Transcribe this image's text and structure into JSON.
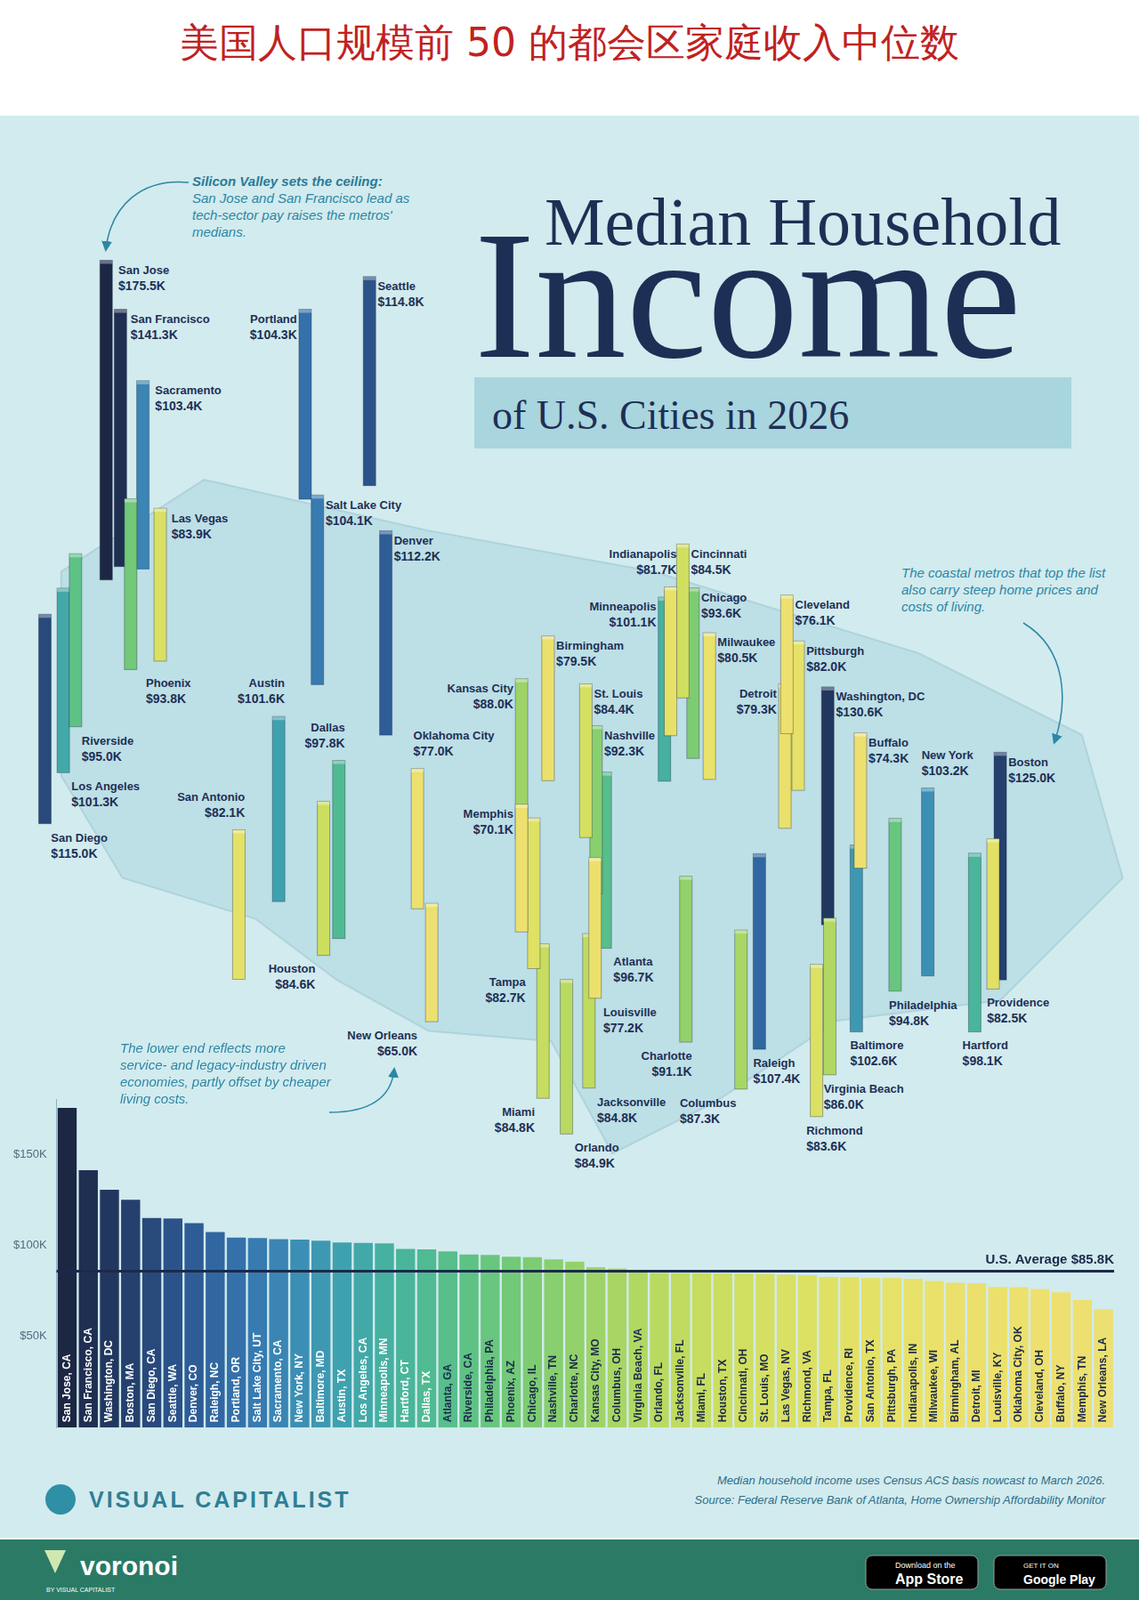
{
  "header": "美国人口规模前 50 的都会区家庭收入中位数",
  "chart_data": {
    "type": "bar",
    "title": "Median Household Income",
    "subtitle": "of U.S. Cities in 2026",
    "categories": [
      "San Jose, CA",
      "San Francisco, CA",
      "Washington, DC",
      "Boston, MA",
      "San Diego, CA",
      "Seattle, WA",
      "Denver, CO",
      "Raleigh, NC",
      "Portland, OR",
      "Salt Lake City, UT",
      "Sacramento, CA",
      "New York, NY",
      "Baltimore, MD",
      "Austin, TX",
      "Los Angeles, CA",
      "Minneapolis, MN",
      "Hartford, CT",
      "Dallas, TX",
      "Atlanta, GA",
      "Riverside, CA",
      "Philadelphia, PA",
      "Phoenix, AZ",
      "Chicago, IL",
      "Nashville, TN",
      "Charlotte, NC",
      "Kansas City, MO",
      "Columbus, OH",
      "Virginia Beach, VA",
      "Orlando, FL",
      "Jacksonville, FL",
      "Miami, FL",
      "Houston, TX",
      "Cincinnati, OH",
      "St. Louis, MO",
      "Las Vegas, NV",
      "Richmond, VA",
      "Tampa, FL",
      "Providence, RI",
      "San Antonio, TX",
      "Pittsburgh, PA",
      "Indianapolis, IN",
      "Milwaukee, WI",
      "Birmingham, AL",
      "Detroit, MI",
      "Louisville, KY",
      "Oklahoma City, OK",
      "Cleveland, OH",
      "Buffalo, NY",
      "Memphis, TN",
      "New Orleans, LA"
    ],
    "values": [
      175500,
      141300,
      130600,
      125000,
      115000,
      114800,
      112200,
      107400,
      104300,
      104100,
      103400,
      103200,
      102600,
      101600,
      101300,
      101100,
      98100,
      97800,
      96700,
      95000,
      94800,
      93800,
      93600,
      92300,
      91100,
      88000,
      87300,
      86000,
      84900,
      84800,
      84800,
      84600,
      84500,
      84400,
      83900,
      83600,
      82700,
      82500,
      82100,
      82000,
      81700,
      80500,
      79500,
      79300,
      77200,
      77000,
      76100,
      74300,
      70100,
      65000
    ],
    "value_labels": [
      "$175.5K",
      "$141.3K",
      "$130.6K",
      "$125.0K",
      "$115.0K",
      "$114.8K",
      "$112.2K",
      "$107.4K",
      "$104.3K",
      "$104.1K",
      "$103.4K",
      "$103.2K",
      "$102.6K",
      "$101.6K",
      "$101.3K",
      "$101.1K",
      "$98.1K",
      "$97.8K",
      "$96.7K",
      "$95.0K",
      "$94.8K",
      "$93.8K",
      "$93.6K",
      "$92.3K",
      "$91.1K",
      "$88.0K",
      "$87.3K",
      "$86.0K",
      "$84.9K",
      "$84.8K",
      "$84.8K",
      "$84.6K",
      "$84.5K",
      "$84.4K",
      "$83.9K",
      "$83.6K",
      "$82.7K",
      "$82.5K",
      "$82.1K",
      "$82.0K",
      "$81.7K",
      "$80.5K",
      "$79.5K",
      "$79.3K",
      "$77.2K",
      "$77.0K",
      "$76.1K",
      "$74.3K",
      "$70.1K",
      "$65.0K"
    ],
    "map_labels": [
      "San Jose",
      "San Francisco",
      "Washington, DC",
      "Boston",
      "San Diego",
      "Seattle",
      "Denver",
      "Raleigh",
      "Portland",
      "Salt Lake City",
      "Sacramento",
      "New York",
      "Baltimore",
      "Austin",
      "Los Angeles",
      "Minneapolis",
      "Hartford",
      "Dallas",
      "Atlanta",
      "Riverside",
      "Philadelphia",
      "Phoenix",
      "Chicago",
      "Nashville",
      "Charlotte",
      "Kansas City",
      "Columbus",
      "Virginia Beach",
      "Orlando",
      "Jacksonville",
      "Miami",
      "Houston",
      "Cincinnati",
      "St. Louis",
      "Las Vegas",
      "Richmond",
      "Tampa",
      "Providence",
      "San Antonio",
      "Pittsburgh",
      "Indianapolis",
      "Milwaukee",
      "Birmingham",
      "Detroit",
      "Louisville",
      "Oklahoma City",
      "Cleveland",
      "Buffalo",
      "Memphis",
      "New Orleans"
    ],
    "colors": [
      "#1c2744",
      "#1f2f52",
      "#22375f",
      "#25406d",
      "#28497b",
      "#2b5389",
      "#2e5d96",
      "#3167a1",
      "#3471aa",
      "#377bb1",
      "#3a85b4",
      "#3c8fb4",
      "#3e98b2",
      "#40a1ae",
      "#43a9a8",
      "#46b0a1",
      "#4ab59a",
      "#50ba93",
      "#57be8c",
      "#5fc285",
      "#68c67e",
      "#72c978",
      "#7dcc73",
      "#88cf6f",
      "#93d16b",
      "#9ed368",
      "#a8d665",
      "#b1d863",
      "#b9da61",
      "#c0db60",
      "#c6dd5f",
      "#ccde60",
      "#d1df61",
      "#d5e062",
      "#d9e063",
      "#dce164",
      "#dfe165",
      "#e2e166",
      "#e4e167",
      "#e6e168",
      "#e8e169",
      "#e9e16a",
      "#eae06b",
      "#ebe06c",
      "#ece06d",
      "#ece06e",
      "#ede06f",
      "#ede070",
      "#ede071",
      "#ede072"
    ],
    "ylim": [
      0,
      180000
    ],
    "yticks": [
      {
        "value": 50000,
        "label": "$50K"
      },
      {
        "value": 100000,
        "label": "$100K"
      },
      {
        "value": 150000,
        "label": "$150K"
      }
    ],
    "grid": false,
    "reference_line": {
      "value": 85800,
      "label": "U.S. Average $85.8K"
    }
  },
  "annotations": {
    "silicon_valley": {
      "title": "Silicon Valley sets the ceiling:",
      "text": "San Jose and San Francisco lead as tech-sector pay raises the metros' medians."
    },
    "coastal": "The coastal metros that top the list also carry steep home prices and costs of living.",
    "lower_end": "The lower end reflects more service- and legacy-industry driven economies, partly offset by cheaper living costs."
  },
  "footnote": "Median household income uses Census ACS basis nowcast to March 2026.",
  "source": "Source: Federal Reserve Bank of Atlanta, Home Ownership Affordability Monitor",
  "logo": "VISUAL CAPITALIST",
  "footer": {
    "brand": "voronoi",
    "by": "BY VISUAL CAPITALIST",
    "app_store": [
      "Download on the",
      "App Store"
    ],
    "google_play": [
      "GET IT ON",
      "Google Play"
    ]
  }
}
